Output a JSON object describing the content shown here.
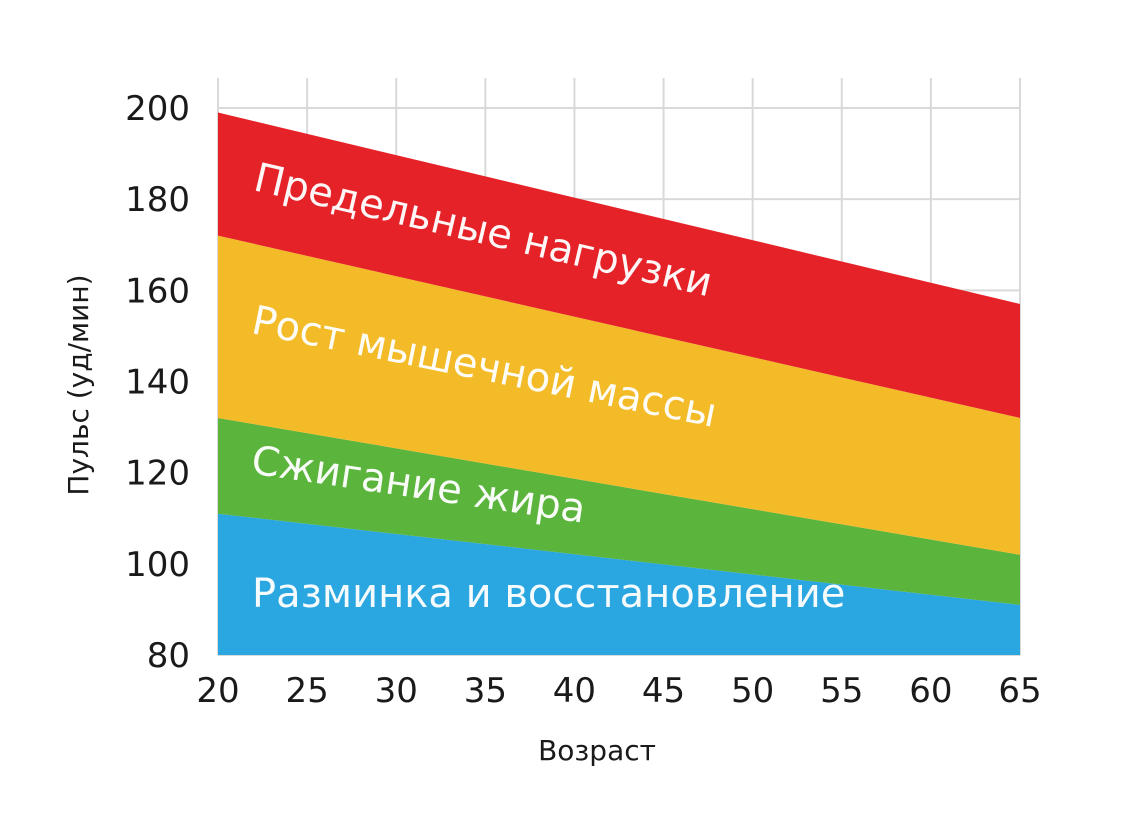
{
  "chart_data": {
    "type": "area",
    "title": "",
    "xlabel": "Возраст",
    "ylabel": "Пульс (уд/мин)",
    "xlim": [
      20,
      65
    ],
    "ylim": [
      80,
      200
    ],
    "x_ticks": [
      20,
      25,
      30,
      35,
      40,
      45,
      50,
      55,
      60,
      65
    ],
    "y_ticks": [
      80,
      100,
      120,
      140,
      160,
      180,
      200
    ],
    "grid": true,
    "x": [
      20,
      65
    ],
    "bands": [
      {
        "name": "Разминка и восстановление",
        "lower": [
          80,
          80
        ],
        "upper": [
          111,
          91
        ],
        "color": "#2aa6e0"
      },
      {
        "name": "Сжигание жира",
        "lower": [
          111,
          91
        ],
        "upper": [
          132,
          102
        ],
        "color": "#5bb43b"
      },
      {
        "name": "Рост мышечной массы",
        "lower": [
          132,
          102
        ],
        "upper": [
          172,
          132
        ],
        "color": "#f4bb29"
      },
      {
        "name": "Предельные нагрузки",
        "lower": [
          172,
          132
        ],
        "upper": [
          199,
          157
        ],
        "color": "#e62229"
      }
    ]
  }
}
